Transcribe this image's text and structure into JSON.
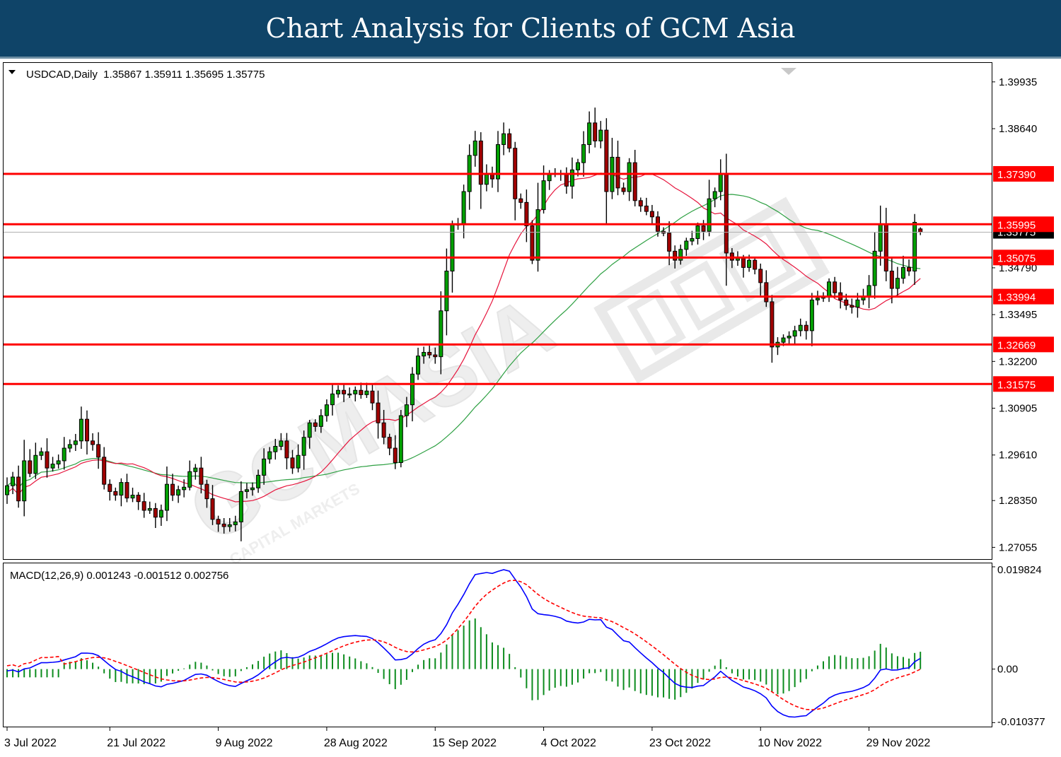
{
  "banner": {
    "title": "Chart Analysis for Clients of GCM Asia"
  },
  "chart_data": {
    "type": "candlestick",
    "symbol": "USDCAD",
    "timeframe": "Daily",
    "header_text": "USDCAD,Daily  1.35867 1.35911 1.35695 1.35775",
    "ohlc_last": {
      "open": 1.35867,
      "high": 1.35911,
      "low": 1.35695,
      "close": 1.35775
    },
    "current_price": 1.35775,
    "current_price_label": "1.35775",
    "ylim": [
      1.2673,
      1.4046
    ],
    "y_ticks": [
      "1.39935",
      "1.38640",
      "1.34790",
      "1.33495",
      "1.32200",
      "1.30905",
      "1.29610",
      "1.28350",
      "1.27055"
    ],
    "levels": [
      {
        "value": 1.3739,
        "label": "1.37390",
        "color": "#ff0000"
      },
      {
        "value": 1.35995,
        "label": "1.35995",
        "color": "#ff0000"
      },
      {
        "value": 1.35075,
        "label": "1.35075",
        "color": "#ff0000"
      },
      {
        "value": 1.33994,
        "label": "1.33994",
        "color": "#ff0000"
      },
      {
        "value": 1.32669,
        "label": "1.32669",
        "color": "#ff0000"
      },
      {
        "value": 1.31575,
        "label": "1.31575",
        "color": "#ff0000"
      }
    ],
    "x_ticks": [
      "3 Jul 2022",
      "21 Jul 2022",
      "9 Aug 2022",
      "28 Aug 2022",
      "15 Sep 2022",
      "4 Oct 2022",
      "23 Oct 2022",
      "10 Nov 2022",
      "29 Nov 2022"
    ],
    "x_tick_bar_index": [
      0,
      18,
      37,
      56,
      75,
      94,
      113,
      132,
      151
    ],
    "series_colors": {
      "up": "#00a000",
      "down": "#a00000",
      "ma_fast": "#e6143c",
      "ma_slow": "#2ea043"
    },
    "closes": [
      1.2876,
      1.29,
      1.2834,
      1.2945,
      1.291,
      1.296,
      1.297,
      1.2925,
      1.2936,
      1.2945,
      1.298,
      1.299,
      1.3,
      1.306,
      1.3,
      1.299,
      1.2955,
      1.288,
      1.286,
      1.285,
      1.2885,
      1.2842,
      1.285,
      1.2832,
      1.2808,
      1.2813,
      1.2789,
      1.2808,
      1.288,
      1.285,
      1.2865,
      1.2872,
      1.2915,
      1.2925,
      1.288,
      1.284,
      1.2783,
      1.277,
      1.2763,
      1.2768,
      1.2776,
      1.286,
      1.2865,
      1.287,
      1.2905,
      1.295,
      1.297,
      1.2985,
      1.3,
      1.2953,
      1.2925,
      1.296,
      1.301,
      1.305,
      1.304,
      1.307,
      1.31,
      1.313,
      1.314,
      1.313,
      1.313,
      1.314,
      1.3128,
      1.3138,
      1.3105,
      1.305,
      1.301,
      1.298,
      1.294,
      1.307,
      1.31,
      1.3185,
      1.3235,
      1.3245,
      1.3238,
      1.3233,
      1.336,
      1.347,
      1.36,
      1.36,
      1.369,
      1.379,
      1.383,
      1.371,
      1.374,
      1.3725,
      1.382,
      1.385,
      1.381,
      1.367,
      1.366,
      1.3595,
      1.35,
      1.364,
      1.372,
      1.374,
      1.374,
      1.3738,
      1.3705,
      1.375,
      1.377,
      1.382,
      1.388,
      1.383,
      1.386,
      1.369,
      1.3785,
      1.37,
      1.369,
      1.377,
      1.3665,
      1.365,
      1.3635,
      1.362,
      1.358,
      1.3575,
      1.3525,
      1.35,
      1.353,
      1.3553,
      1.356,
      1.3595,
      1.358,
      1.367,
      1.369,
      1.374,
      1.352,
      1.35,
      1.3505,
      1.348,
      1.35,
      1.3475,
      1.3438,
      1.3385,
      1.326,
      1.3273,
      1.3285,
      1.329,
      1.3305,
      1.332,
      1.3305,
      1.339,
      1.3395,
      1.34,
      1.344,
      1.341,
      1.339,
      1.3375,
      1.337,
      1.339,
      1.34,
      1.343,
      1.3525,
      1.36,
      1.347,
      1.3422,
      1.345,
      1.348,
      1.347,
      1.3605,
      1.3577
    ],
    "macd": {
      "label": "MACD(12,26,9) 0.001243 -0.001512 0.002756",
      "params": [
        12,
        26,
        9
      ],
      "main": 0.001243,
      "signal": -0.001512,
      "histogram_value": 0.002756,
      "ylim": [
        -0.01115,
        0.0205
      ],
      "y_ticks": [
        "0.019824",
        "0.00",
        "-0.010377"
      ],
      "colors": {
        "main": "#0000ff",
        "signal": "#ff0000",
        "hist": "#0c8c1e"
      }
    }
  }
}
